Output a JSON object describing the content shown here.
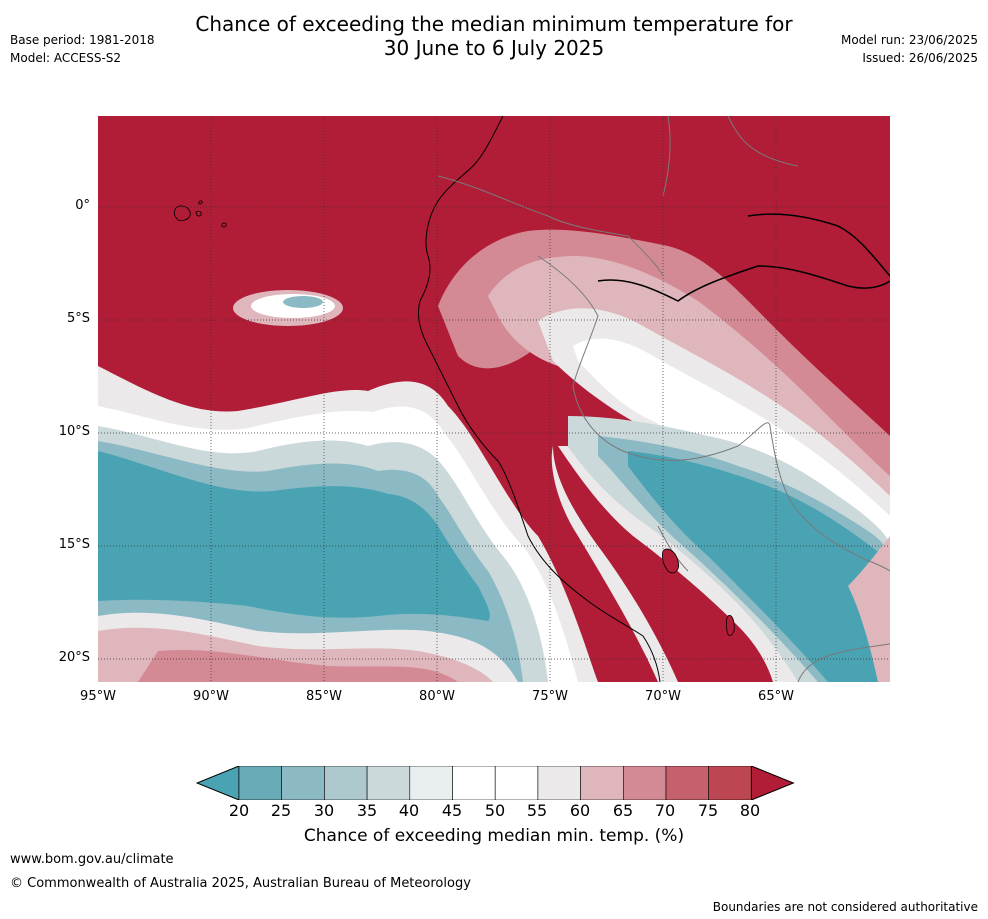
{
  "title": {
    "line1": "Chance of exceeding the median minimum temperature for",
    "line2": "30 June to 6 July 2025"
  },
  "header_left": {
    "base_period": "Base period: 1981-2018",
    "model": "Model: ACCESS-S2"
  },
  "header_right": {
    "model_run": "Model run: 23/06/2025",
    "issued": "Issued: 26/06/2025"
  },
  "map": {
    "lat_labels": [
      "0°",
      "5°S",
      "10°S",
      "15°S",
      "20°S"
    ],
    "lon_labels": [
      "95°W",
      "90°W",
      "85°W",
      "80°W",
      "75°W",
      "70°W",
      "65°W"
    ]
  },
  "colorbar": {
    "ticks": [
      "20",
      "25",
      "30",
      "35",
      "40",
      "45",
      "50",
      "55",
      "60",
      "65",
      "70",
      "75",
      "80"
    ],
    "label": "Chance of exceeding median min. temp. (%)",
    "colors": [
      "#4aa3b3",
      "#6aabb8",
      "#8cbac4",
      "#adc9cd",
      "#ccd9db",
      "#e9eef0",
      "#ffffff",
      "#ffffff",
      "#ebe9ea",
      "#dfb6bc",
      "#d38a94",
      "#c5606d",
      "#bd4653",
      "#b11c37"
    ]
  },
  "footer": {
    "site": "www.bom.gov.au/climate",
    "copyright": "© Commonwealth of Australia 2025, Australian Bureau of Meteorology",
    "disclaimer": "Boundaries are not considered authoritative"
  }
}
